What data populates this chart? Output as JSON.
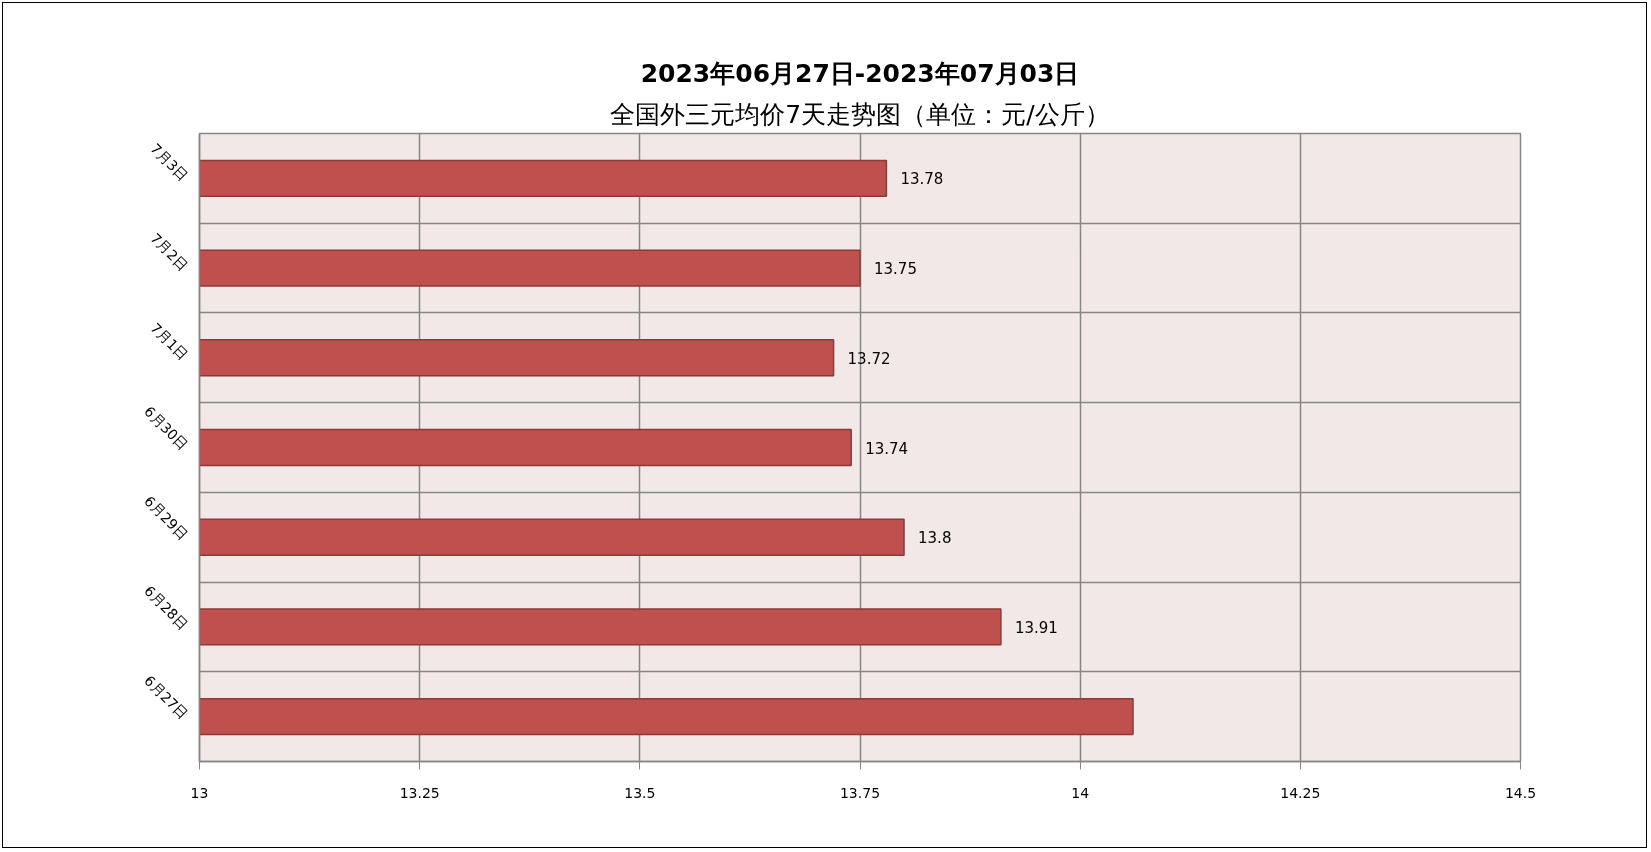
{
  "chart_data": {
    "type": "bar",
    "orientation": "horizontal",
    "title": "2023年06月27日-2023年07月03日",
    "subtitle": "全国外三元均价7天走势图（单位：元/公斤）",
    "categories": [
      "7月3日",
      "7月2日",
      "7月1日",
      "6月30日",
      "6月29日",
      "6月28日",
      "6月27日"
    ],
    "values": [
      13.78,
      13.75,
      13.72,
      13.74,
      13.8,
      13.91,
      14.06
    ],
    "value_labels": [
      "13.78",
      "13.75",
      "13.72",
      "13.74",
      "13.8",
      "13.91",
      null
    ],
    "color": "#c0504d",
    "xlim": [
      13,
      14.5
    ],
    "xticks": [
      13,
      13.25,
      13.5,
      13.75,
      14,
      14.25,
      14.5
    ],
    "grid": true
  }
}
